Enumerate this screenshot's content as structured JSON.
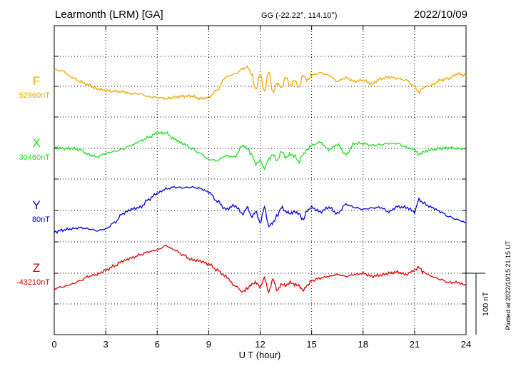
{
  "chart_data": {
    "type": "line",
    "title": "Learmonth (LRM)  [GA]",
    "coords": "GG (-22.22°, 114.10°)",
    "date": "2022/10/09",
    "xlabel": "U T (hour)",
    "xlim": [
      0,
      24
    ],
    "xticks": [
      "0",
      "3",
      "6",
      "9",
      "12",
      "15",
      "18",
      "21",
      "24"
    ],
    "scale_label": "100 nT",
    "scale_nT": 100,
    "footer": "Plotted at 2022/10/15 21:15 UT",
    "grid": true,
    "series": [
      {
        "name": "F",
        "baseline_label": "52860nT",
        "baseline_nT": 52860,
        "color": "#f0a800",
        "x": [
          0,
          0.5,
          1,
          1.5,
          2,
          2.5,
          3,
          3.5,
          4,
          4.5,
          5,
          5.5,
          6,
          6.5,
          7,
          7.5,
          8,
          8.5,
          9,
          9.5,
          10,
          10.5,
          11,
          11.25,
          11.5,
          11.75,
          12,
          12.25,
          12.5,
          12.75,
          13,
          13.25,
          13.5,
          13.75,
          14,
          14.25,
          14.5,
          14.75,
          15,
          15.5,
          16,
          16.5,
          17,
          17.5,
          18,
          18.5,
          19,
          19.5,
          20,
          20.5,
          21,
          21.25,
          21.5,
          22,
          22.5,
          23,
          23.5,
          24
        ],
        "values": [
          27,
          25,
          15,
          8,
          2,
          -4,
          -7,
          -8,
          -9,
          -12,
          -12,
          -17,
          -18,
          -20,
          -18,
          -16,
          -16,
          -20,
          -18,
          -6,
          15,
          20,
          28,
          32,
          20,
          -5,
          20,
          -8,
          24,
          -10,
          5,
          -2,
          15,
          0,
          10,
          -2,
          18,
          10,
          18,
          22,
          18,
          8,
          14,
          8,
          10,
          4,
          12,
          15,
          13,
          10,
          0,
          -10,
          -2,
          2,
          10,
          13,
          20,
          18
        ]
      },
      {
        "name": "X",
        "baseline_label": "30460nT",
        "baseline_nT": 30460,
        "color": "#22dd22",
        "x": [
          0,
          0.5,
          1,
          1.5,
          2,
          2.5,
          3,
          3.5,
          4,
          4.5,
          5,
          5.5,
          6,
          6.5,
          7,
          7.5,
          8,
          8.5,
          9,
          9.5,
          10,
          10.5,
          11,
          11.25,
          11.5,
          11.75,
          12,
          12.25,
          12.5,
          12.75,
          13,
          13.25,
          13.5,
          13.75,
          14,
          14.25,
          14.5,
          14.75,
          15,
          15.5,
          16,
          16.5,
          17,
          17.5,
          18,
          18.5,
          19,
          19.5,
          20,
          20.5,
          21,
          21.25,
          21.5,
          22,
          22.5,
          23,
          23.5,
          24
        ],
        "values": [
          2,
          0,
          0,
          -2,
          -10,
          -14,
          -8,
          -5,
          -1,
          5,
          12,
          18,
          25,
          25,
          15,
          8,
          0,
          -8,
          -18,
          -20,
          -12,
          -14,
          5,
          0,
          -10,
          -25,
          -20,
          -32,
          -18,
          -10,
          -20,
          -5,
          -15,
          -10,
          -12,
          -22,
          -10,
          -2,
          5,
          10,
          -2,
          6,
          -10,
          8,
          8,
          5,
          6,
          8,
          8,
          2,
          -2,
          -10,
          -6,
          -2,
          0,
          1,
          0,
          -1
        ]
      },
      {
        "name": "Y",
        "baseline_label": "80nT",
        "baseline_nT": 80,
        "color": "#0000dd",
        "x": [
          0,
          0.5,
          1,
          1.5,
          2,
          2.5,
          3,
          3.5,
          4,
          4.5,
          5,
          5.5,
          6,
          6.5,
          7,
          7.5,
          8,
          8.5,
          9,
          9.5,
          10,
          10.5,
          11,
          11.25,
          11.5,
          11.75,
          12,
          12.25,
          12.5,
          12.75,
          13,
          13.25,
          13.5,
          13.75,
          14,
          14.25,
          14.5,
          14.75,
          15,
          15.5,
          16,
          16.5,
          17,
          17.5,
          18,
          18.5,
          19,
          19.5,
          20,
          20.5,
          21,
          21.25,
          21.5,
          22,
          22.5,
          23,
          23.5,
          24
        ],
        "values": [
          -35,
          -32,
          -30,
          -28,
          -30,
          -33,
          -30,
          -20,
          -5,
          2,
          5,
          18,
          28,
          35,
          38,
          37,
          38,
          36,
          30,
          15,
          2,
          8,
          -5,
          5,
          -10,
          -2,
          -20,
          5,
          -25,
          -20,
          -8,
          5,
          -2,
          -5,
          -2,
          -5,
          -15,
          0,
          5,
          -2,
          5,
          -5,
          10,
          5,
          2,
          4,
          5,
          -2,
          6,
          5,
          -2,
          18,
          12,
          5,
          -2,
          -10,
          -15,
          -20
        ]
      },
      {
        "name": "Z",
        "baseline_label": "-43210nT",
        "baseline_nT": -43210,
        "color": "#dd0000",
        "x": [
          0,
          0.5,
          1,
          1.5,
          2,
          2.5,
          3,
          3.5,
          4,
          4.5,
          5,
          5.5,
          6,
          6.5,
          7,
          7.5,
          8,
          8.5,
          9,
          9.5,
          10,
          10.5,
          11,
          11.25,
          11.5,
          11.75,
          12,
          12.25,
          12.5,
          12.75,
          13,
          13.25,
          13.5,
          13.75,
          14,
          14.25,
          14.5,
          14.75,
          15,
          15.5,
          16,
          16.5,
          17,
          17.5,
          18,
          18.5,
          19,
          19.5,
          20,
          20.5,
          21,
          21.25,
          21.5,
          22,
          22.5,
          23,
          23.5,
          24
        ],
        "values": [
          -25,
          -22,
          -18,
          -12,
          -5,
          -2,
          5,
          12,
          20,
          25,
          30,
          35,
          38,
          45,
          38,
          30,
          22,
          20,
          15,
          5,
          -5,
          -20,
          -30,
          -25,
          -18,
          -15,
          -22,
          -8,
          -30,
          -10,
          -28,
          -18,
          -20,
          -15,
          -18,
          -20,
          -28,
          -20,
          -12,
          -8,
          -5,
          -2,
          -5,
          -2,
          0,
          -5,
          -3,
          0,
          2,
          -2,
          5,
          10,
          2,
          -5,
          -10,
          -15,
          -15,
          -20
        ]
      }
    ]
  }
}
